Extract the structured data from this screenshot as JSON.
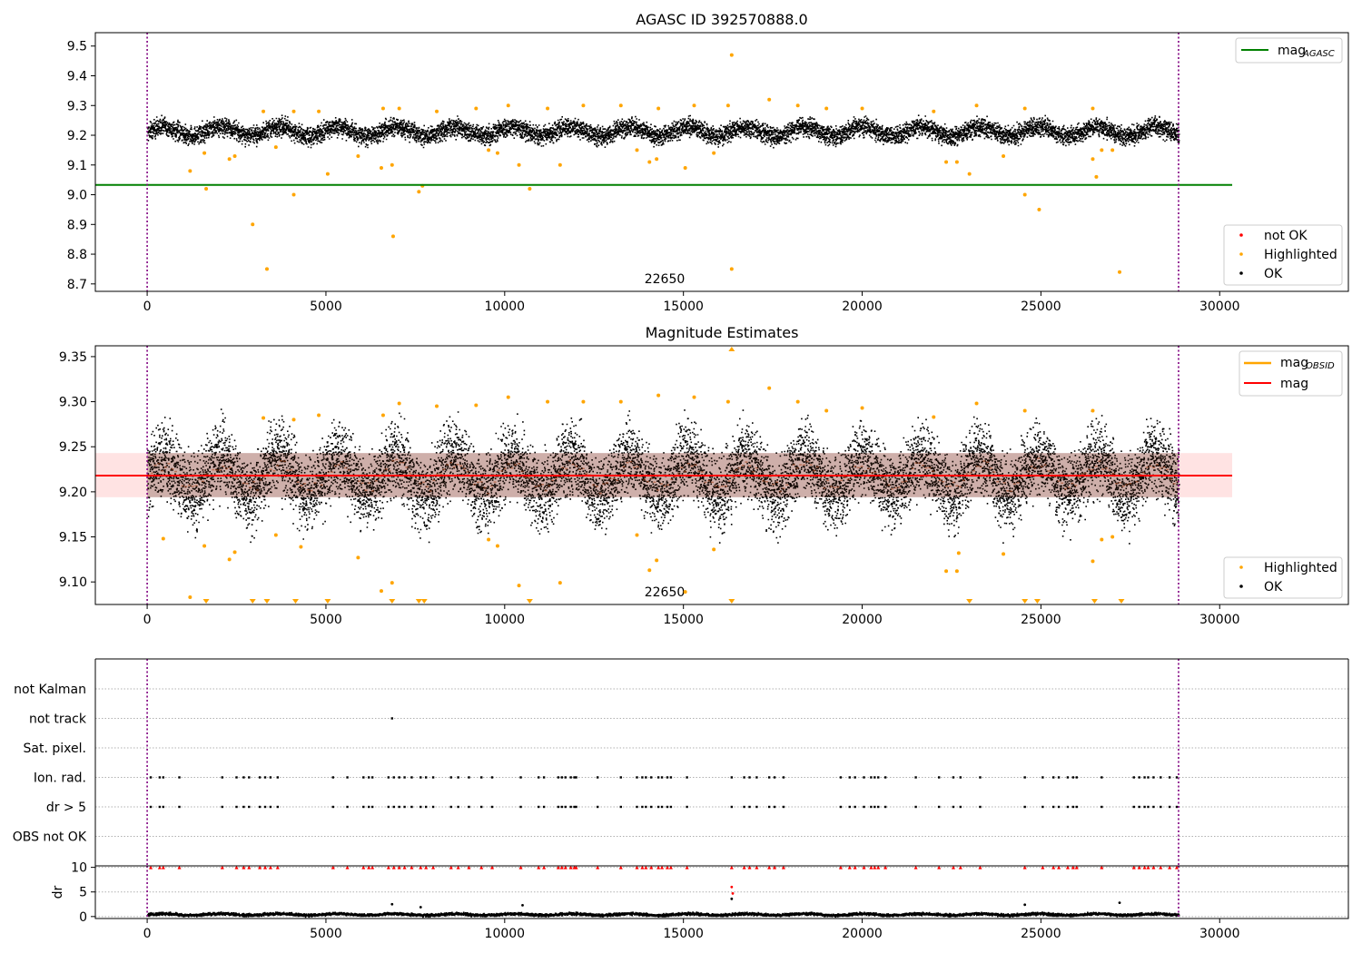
{
  "chart_data": [
    {
      "type": "scatter",
      "title": "AGASC ID 392570888.0",
      "xlim": [
        -1450,
        33600
      ],
      "ylim": [
        8.675,
        9.545
      ],
      "xticks": [
        "0",
        "5000",
        "10000",
        "15000",
        "20000",
        "25000",
        "30000"
      ],
      "yticks": [
        "8.7",
        "8.8",
        "8.9",
        "9.0",
        "9.1",
        "9.2",
        "9.3",
        "9.4",
        "9.5"
      ],
      "annotation": "22650",
      "annotation_x": 14250,
      "obsid_boundaries": [
        0,
        28850
      ],
      "series": [
        {
          "name": "mag_AGASC",
          "type": "hline",
          "y": 9.033,
          "x_end": 30350,
          "color": "#008000"
        },
        {
          "name": "not OK",
          "color": "#ff0000",
          "points": []
        },
        {
          "name": "Highlighted",
          "color": "#ffa500",
          "points": [
            [
              1200,
              9.08
            ],
            [
              1600,
              9.14
            ],
            [
              1650,
              9.02
            ],
            [
              2300,
              9.12
            ],
            [
              2450,
              9.13
            ],
            [
              2950,
              8.9
            ],
            [
              3350,
              8.75
            ],
            [
              3600,
              9.16
            ],
            [
              4100,
              9.0
            ],
            [
              5050,
              9.07
            ],
            [
              5900,
              9.13
            ],
            [
              6550,
              9.09
            ],
            [
              6850,
              9.1
            ],
            [
              6880,
              8.86
            ],
            [
              7600,
              9.01
            ],
            [
              7700,
              9.03
            ],
            [
              9550,
              9.15
            ],
            [
              9800,
              9.14
            ],
            [
              10400,
              9.1
            ],
            [
              10700,
              9.02
            ],
            [
              11550,
              9.1
            ],
            [
              13700,
              9.15
            ],
            [
              14050,
              9.11
            ],
            [
              14250,
              9.12
            ],
            [
              15050,
              9.09
            ],
            [
              15850,
              9.14
            ],
            [
              16350,
              9.47
            ],
            [
              16350,
              8.75
            ],
            [
              22350,
              9.11
            ],
            [
              22650,
              9.11
            ],
            [
              23000,
              9.07
            ],
            [
              23950,
              9.13
            ],
            [
              24550,
              9.0
            ],
            [
              24950,
              8.95
            ],
            [
              26450,
              9.12
            ],
            [
              26550,
              9.06
            ],
            [
              26700,
              9.15
            ],
            [
              27000,
              9.15
            ],
            [
              27200,
              8.74
            ],
            [
              3250,
              9.28
            ],
            [
              4100,
              9.28
            ],
            [
              4800,
              9.28
            ],
            [
              6600,
              9.29
            ],
            [
              7050,
              9.29
            ],
            [
              8100,
              9.28
            ],
            [
              9200,
              9.29
            ],
            [
              10100,
              9.3
            ],
            [
              11200,
              9.29
            ],
            [
              12200,
              9.3
            ],
            [
              13250,
              9.3
            ],
            [
              14300,
              9.29
            ],
            [
              15300,
              9.3
            ],
            [
              16250,
              9.3
            ],
            [
              17400,
              9.32
            ],
            [
              18200,
              9.3
            ],
            [
              19000,
              9.29
            ],
            [
              20000,
              9.29
            ],
            [
              22000,
              9.28
            ],
            [
              23200,
              9.3
            ],
            [
              24550,
              9.29
            ],
            [
              26450,
              9.29
            ]
          ]
        },
        {
          "name": "OK",
          "color": "#000000",
          "band": {
            "center": 9.215,
            "half_width": 0.045,
            "x_start": 0,
            "x_end": 28850
          }
        }
      ],
      "legends": [
        {
          "placement": "upper-right",
          "entries": [
            {
              "label": "mag",
              "sub": "AGASC",
              "kind": "line",
              "color": "#008000"
            }
          ]
        },
        {
          "placement": "lower-right",
          "entries": [
            {
              "label": "not OK",
              "kind": "dot",
              "color": "#ff0000"
            },
            {
              "label": "Highlighted",
              "kind": "dot",
              "color": "#ffa500"
            },
            {
              "label": "OK",
              "kind": "dot",
              "color": "#000000"
            }
          ]
        }
      ]
    },
    {
      "type": "scatter",
      "title": "Magnitude Estimates",
      "xlim": [
        -1450,
        33600
      ],
      "ylim": [
        9.075,
        9.362
      ],
      "xticks": [
        "0",
        "5000",
        "10000",
        "15000",
        "20000",
        "25000",
        "30000"
      ],
      "yticks": [
        "9.10",
        "9.15",
        "9.20",
        "9.25",
        "9.30",
        "9.35"
      ],
      "annotation": "22650",
      "annotation_x": 14250,
      "obsid_boundaries": [
        0,
        28850
      ],
      "series": [
        {
          "name": "mag",
          "type": "hline",
          "y": 9.218,
          "x_end": 30350,
          "color": "#ff0000",
          "band": [
            9.194,
            9.243
          ]
        },
        {
          "name": "mag_OBSID",
          "type": "segments",
          "color": "#ffa500"
        },
        {
          "name": "Highlighted",
          "color": "#ffa500",
          "points": [
            [
              450,
              9.148
            ],
            [
              1200,
              9.083
            ],
            [
              1600,
              9.14
            ],
            [
              2300,
              9.125
            ],
            [
              2450,
              9.133
            ],
            [
              3600,
              9.152
            ],
            [
              4300,
              9.139
            ],
            [
              5900,
              9.127
            ],
            [
              6550,
              9.09
            ],
            [
              6850,
              9.099
            ],
            [
              9550,
              9.147
            ],
            [
              9800,
              9.14
            ],
            [
              10400,
              9.096
            ],
            [
              11550,
              9.099
            ],
            [
              13700,
              9.152
            ],
            [
              14050,
              9.113
            ],
            [
              14250,
              9.124
            ],
            [
              15050,
              9.089
            ],
            [
              15850,
              9.136
            ],
            [
              22350,
              9.112
            ],
            [
              22650,
              9.112
            ],
            [
              22700,
              9.132
            ],
            [
              23950,
              9.131
            ],
            [
              26450,
              9.123
            ],
            [
              26700,
              9.147
            ],
            [
              27000,
              9.15
            ],
            [
              3250,
              9.282
            ],
            [
              4100,
              9.28
            ],
            [
              4800,
              9.285
            ],
            [
              6600,
              9.285
            ],
            [
              7050,
              9.298
            ],
            [
              8100,
              9.295
            ],
            [
              9200,
              9.296
            ],
            [
              10100,
              9.305
            ],
            [
              11200,
              9.3
            ],
            [
              12200,
              9.3
            ],
            [
              13250,
              9.3
            ],
            [
              14300,
              9.307
            ],
            [
              15300,
              9.305
            ],
            [
              16250,
              9.3
            ],
            [
              17400,
              9.315
            ],
            [
              18200,
              9.3
            ],
            [
              19000,
              9.29
            ],
            [
              20000,
              9.293
            ],
            [
              22000,
              9.283
            ],
            [
              23200,
              9.298
            ],
            [
              24550,
              9.29
            ],
            [
              26450,
              9.29
            ]
          ]
        },
        {
          "name": "Highlighted (below range)",
          "color": "#ffa500",
          "marker": "triangle-down",
          "x": [
            1650,
            2950,
            3350,
            4150,
            5050,
            6850,
            7600,
            7750,
            10700,
            16350,
            23000,
            24550,
            24900,
            26500,
            27250
          ]
        },
        {
          "name": "Highlighted (above range)",
          "color": "#ffa500",
          "marker": "triangle-up",
          "x": [
            16350
          ]
        },
        {
          "name": "OK",
          "color": "#000000",
          "band": {
            "center": 9.218,
            "half_width": 0.06,
            "x_start": 0,
            "x_end": 28850
          }
        }
      ],
      "legends": [
        {
          "placement": "upper-right",
          "entries": [
            {
              "label": "mag",
              "sub": "OBSID",
              "kind": "line",
              "color": "#ffa500"
            },
            {
              "label": "mag",
              "kind": "line",
              "color": "#ff0000"
            }
          ]
        },
        {
          "placement": "lower-right",
          "entries": [
            {
              "label": "Highlighted",
              "kind": "dot",
              "color": "#ffa500"
            },
            {
              "label": "OK",
              "kind": "dot",
              "color": "#000000"
            }
          ]
        }
      ]
    },
    {
      "type": "scatter",
      "title": "",
      "xlim": [
        -1450,
        33600
      ],
      "categories": [
        "OBS not OK",
        "dr > 5",
        "Ion. rad.",
        "Sat. pixel.",
        "not track",
        "not Kalman"
      ],
      "obsid_boundaries": [
        0,
        28850
      ],
      "flag_x": [
        100,
        350,
        450,
        900,
        2100,
        2500,
        2700,
        2850,
        3150,
        3300,
        3450,
        3650,
        5200,
        5600,
        6050,
        6200,
        6300,
        6750,
        6900,
        7050,
        7200,
        7400,
        7650,
        7800,
        8000,
        8500,
        8700,
        9000,
        9350,
        9650,
        10450,
        10950,
        11100,
        11500,
        11600,
        11700,
        11850,
        11950,
        12000,
        12600,
        13250,
        13700,
        13850,
        13950,
        14100,
        14300,
        14400,
        14550,
        14650,
        15100,
        16350,
        16700,
        16850,
        17050,
        17400,
        17550,
        17800,
        19400,
        19650,
        19800,
        20050,
        20250,
        20350,
        20450,
        20650,
        21500,
        22150,
        22550,
        22750,
        23300,
        24550,
        25050,
        25350,
        25500,
        25750,
        25900,
        26000,
        26700,
        27600,
        27750,
        27900,
        28000,
        28150,
        28350,
        28600,
        28800
      ],
      "flags": [
        {
          "category": "dr > 5",
          "x_source": "flag_x"
        },
        {
          "category": "Ion. rad.",
          "x_source": "flag_x"
        },
        {
          "category": "not track",
          "x": [
            6850
          ]
        }
      ]
    },
    {
      "type": "scatter",
      "title": "",
      "xlim": [
        -1450,
        33600
      ],
      "ylim": [
        -0.4,
        10.3
      ],
      "ylabel": "dr",
      "xticks": [
        "0",
        "5000",
        "10000",
        "15000",
        "20000",
        "25000",
        "30000"
      ],
      "yticks": [
        "0",
        "5",
        "10"
      ],
      "obsid_boundaries": [
        0,
        28850
      ],
      "series": [
        {
          "name": "dr",
          "color": "#000000",
          "band": {
            "center": 0.55,
            "half_width": 0.45,
            "x_start": 0,
            "x_end": 28850
          }
        },
        {
          "name": "dr outliers",
          "color": "#000000",
          "points": [
            [
              6850,
              2.5
            ],
            [
              7650,
              1.9
            ],
            [
              10500,
              2.3
            ],
            [
              16350,
              3.6
            ],
            [
              24550,
              2.4
            ],
            [
              27200,
              2.8
            ]
          ]
        },
        {
          "name": "dr > 5",
          "color": "#ff0000",
          "points": [
            [
              16350,
              6.0
            ],
            [
              16380,
              4.7
            ]
          ],
          "clipped_at": 10,
          "x_source": "flag_x"
        }
      ]
    }
  ]
}
